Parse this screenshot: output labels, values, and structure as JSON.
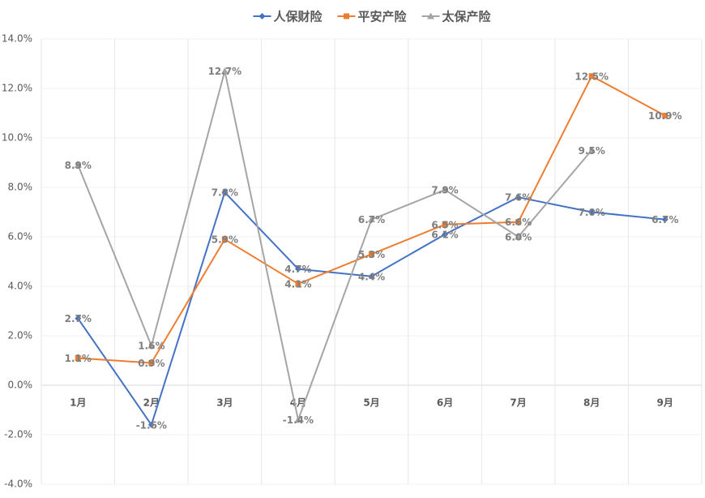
{
  "chart_data": {
    "type": "line",
    "categories": [
      "1月",
      "2月",
      "3月",
      "4月",
      "5月",
      "6月",
      "7月",
      "8月",
      "9月"
    ],
    "series": [
      {
        "name": "人保财险",
        "color": "#4472c4",
        "marker": "diamond",
        "values": [
          2.7,
          -1.6,
          7.8,
          4.7,
          4.4,
          6.1,
          7.6,
          7.0,
          6.7
        ],
        "value_labels": [
          "2.7%",
          "-1.6%",
          "7.8%",
          "4.7%",
          "4.4%",
          "6.1%",
          "7.6%",
          "7.0%",
          "6.7%"
        ]
      },
      {
        "name": "平安产险",
        "color": "#ed7d31",
        "marker": "square",
        "values": [
          1.1,
          0.9,
          5.9,
          4.1,
          5.3,
          6.5,
          6.6,
          12.5,
          10.9
        ],
        "value_labels": [
          "1.1%",
          "0.9%",
          "5.9%",
          "4.1%",
          "5.3%",
          "6.5%",
          "6.6%",
          "12.5%",
          "10.9%"
        ]
      },
      {
        "name": "太保产险",
        "color": "#a5a5a5",
        "marker": "triangle",
        "values": [
          8.9,
          1.6,
          12.7,
          -1.4,
          6.7,
          7.9,
          6.0,
          9.5,
          null
        ],
        "value_labels": [
          "8.9%",
          "1.6%",
          "12.7%",
          "-1.4%",
          "6.7%",
          "7.9%",
          "6.0%",
          "9.5%",
          null
        ]
      }
    ],
    "ylim": [
      -4,
      14
    ],
    "yticks": [
      {
        "value": -4,
        "label": "-4.0%"
      },
      {
        "value": -2,
        "label": "-2.0%"
      },
      {
        "value": 0,
        "label": "0.0%"
      },
      {
        "value": 2,
        "label": "2.0%"
      },
      {
        "value": 4,
        "label": "4.0%"
      },
      {
        "value": 6,
        "label": "6.0%"
      },
      {
        "value": 8,
        "label": "8.0%"
      },
      {
        "value": 10,
        "label": "10.0%"
      },
      {
        "value": 12,
        "label": "12.0%"
      },
      {
        "value": 14,
        "label": "14.0%"
      }
    ],
    "grid": true,
    "legend": "top"
  }
}
